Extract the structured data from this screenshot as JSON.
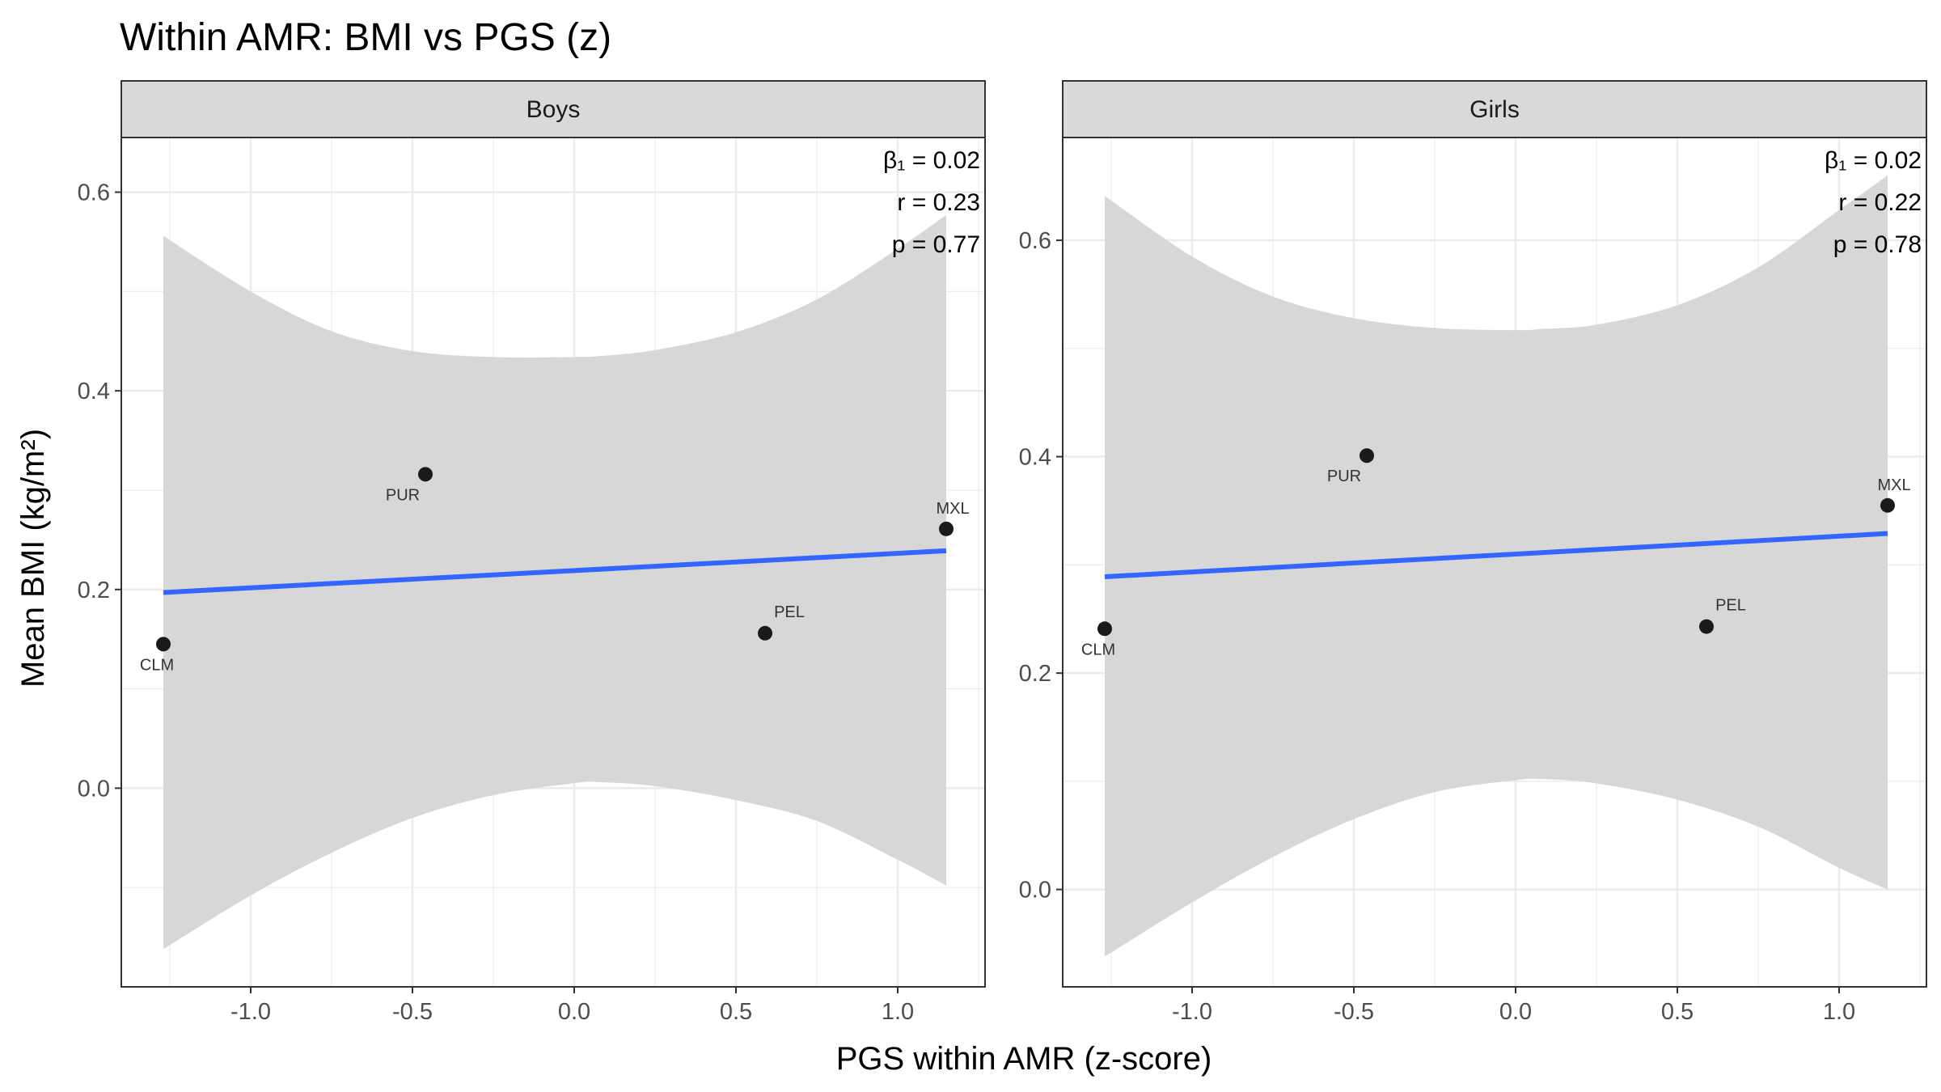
{
  "title": "Within AMR: BMI vs PGS (z)",
  "xlabel": "PGS within AMR (z-score)",
  "ylabel": "Mean BMI (kg/m²)",
  "colors": {
    "fit_line": "#3366FF",
    "ribbon": "#D6D6D6",
    "points": "#1A1A1A",
    "strip": "#D9D9D9",
    "grid": "#EBEBEB"
  },
  "chart_data": [
    {
      "type": "scatter",
      "panel": "Boys",
      "xlim": [
        -1.4,
        1.27
      ],
      "ylim": [
        -0.2,
        0.655
      ],
      "xticks": [
        -1.0,
        -0.5,
        0.0,
        0.5,
        1.0
      ],
      "xtick_labels": [
        "-1.0",
        "-0.5",
        "0.0",
        "0.5",
        "1.0"
      ],
      "yticks": [
        0.0,
        0.2,
        0.4,
        0.6
      ],
      "ytick_labels": [
        "0.0",
        "0.2",
        "0.4",
        "0.6"
      ],
      "points": [
        {
          "label": "CLM",
          "x": -1.27,
          "y": 0.145
        },
        {
          "label": "PUR",
          "x": -0.46,
          "y": 0.316
        },
        {
          "label": "PEL",
          "x": 0.59,
          "y": 0.156
        },
        {
          "label": "MXL",
          "x": 1.15,
          "y": 0.261
        }
      ],
      "fit": {
        "x": [
          -1.27,
          1.15
        ],
        "y": [
          0.197,
          0.239
        ]
      },
      "ribbon": {
        "x": [
          -1.27,
          -1.0,
          -0.75,
          -0.5,
          -0.25,
          0.0,
          0.08,
          0.25,
          0.5,
          0.75,
          1.0,
          1.15
        ],
        "upper": [
          0.556,
          0.5,
          0.46,
          0.44,
          0.434,
          0.434,
          0.435,
          0.441,
          0.459,
          0.492,
          0.543,
          0.577
        ],
        "lower": [
          -0.162,
          -0.108,
          -0.065,
          -0.03,
          -0.007,
          0.005,
          0.006,
          0.002,
          -0.012,
          -0.033,
          -0.072,
          -0.098
        ]
      },
      "annotations": [
        "β₁ = 0.02",
        "r = 0.23",
        "p = 0.77"
      ]
    },
    {
      "type": "scatter",
      "panel": "Girls",
      "xlim": [
        -1.4,
        1.27
      ],
      "ylim": [
        -0.09,
        0.695
      ],
      "xticks": [
        -1.0,
        -0.5,
        0.0,
        0.5,
        1.0
      ],
      "xtick_labels": [
        "-1.0",
        "-0.5",
        "0.0",
        "0.5",
        "1.0"
      ],
      "yticks": [
        0.0,
        0.2,
        0.4,
        0.6
      ],
      "ytick_labels": [
        "0.0",
        "0.2",
        "0.4",
        "0.6"
      ],
      "points": [
        {
          "label": "CLM",
          "x": -1.27,
          "y": 0.241
        },
        {
          "label": "PUR",
          "x": -0.46,
          "y": 0.401
        },
        {
          "label": "PEL",
          "x": 0.59,
          "y": 0.243
        },
        {
          "label": "MXL",
          "x": 1.15,
          "y": 0.355
        }
      ],
      "fit": {
        "x": [
          -1.27,
          1.15
        ],
        "y": [
          0.289,
          0.329
        ]
      },
      "ribbon": {
        "x": [
          -1.27,
          -1.0,
          -0.75,
          -0.5,
          -0.25,
          0.0,
          0.08,
          0.25,
          0.5,
          0.75,
          1.0,
          1.15
        ],
        "upper": [
          0.641,
          0.585,
          0.548,
          0.528,
          0.519,
          0.517,
          0.518,
          0.522,
          0.54,
          0.575,
          0.628,
          0.66
        ],
        "lower": [
          -0.062,
          -0.012,
          0.03,
          0.065,
          0.09,
          0.101,
          0.102,
          0.098,
          0.083,
          0.058,
          0.02,
          0.0
        ]
      },
      "annotations": [
        "β₁ = 0.02",
        "r = 0.22",
        "p = 0.78"
      ]
    }
  ]
}
